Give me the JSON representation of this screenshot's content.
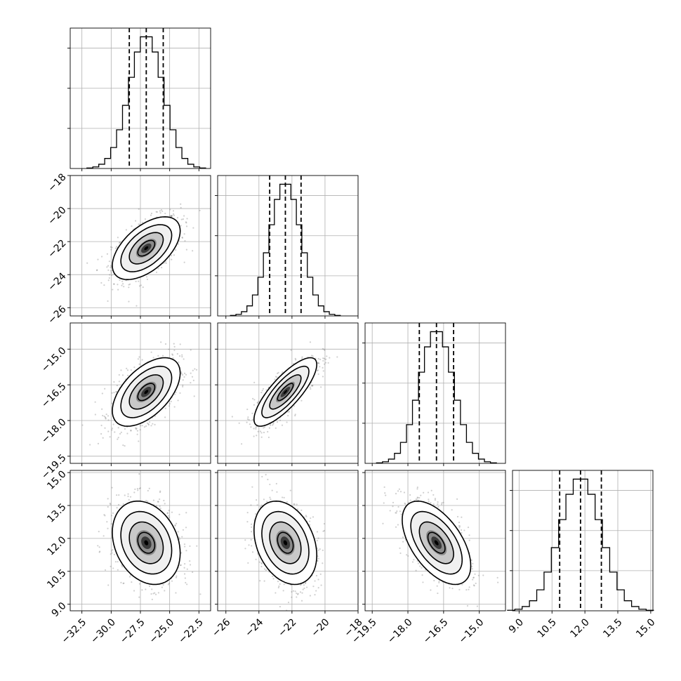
{
  "chart_data": {
    "type": "corner",
    "params": [
      {
        "mean": -27.0,
        "sd": 1.45,
        "quantiles": [
          -28.45,
          -27.0,
          -25.55
        ],
        "range": [
          -33.5,
          -21.5
        ],
        "ticks": [
          -32.5,
          -30.0,
          -27.5,
          -25.0,
          -22.5
        ],
        "tick_labels": [
          "−32.5",
          "−30.0",
          "−27.5",
          "−25.0",
          "−22.5"
        ]
      },
      {
        "mean": -22.4,
        "sd": 0.95,
        "quantiles": [
          -23.35,
          -22.4,
          -21.45
        ],
        "range": [
          -26.5,
          -18.0
        ],
        "ticks": [
          -26,
          -24,
          -22,
          -20,
          -18
        ],
        "tick_labels": [
          "−26",
          "−24",
          "−22",
          "−20",
          "−18"
        ]
      },
      {
        "mean": -16.8,
        "sd": 0.72,
        "quantiles": [
          -17.52,
          -16.8,
          -16.08
        ],
        "range": [
          -19.8,
          -13.9
        ],
        "ticks": [
          -19.5,
          -18.0,
          -16.5,
          -15.0
        ],
        "tick_labels": [
          "−19.5",
          "−18.0",
          "−16.5",
          "−15.0"
        ]
      },
      {
        "mean": 11.8,
        "sd": 0.95,
        "quantiles": [
          10.85,
          11.8,
          12.75
        ],
        "range": [
          8.7,
          15.1
        ],
        "ticks": [
          9.0,
          10.5,
          12.0,
          13.5,
          15.0
        ],
        "tick_labels": [
          "9.0",
          "10.5",
          "12.0",
          "13.5",
          "15.0"
        ]
      }
    ],
    "correlations": {
      "1-0": 0.55,
      "2-0": 0.55,
      "2-1": 0.8,
      "3-0": -0.25,
      "3-1": -0.3,
      "3-2": -0.55
    },
    "histogram_bins": 20,
    "contour_levels": [
      "0.5 sigma",
      "1 sigma",
      "1.5 sigma",
      "2 sigma"
    ],
    "quantiles": [
      0.16,
      0.5,
      0.84
    ],
    "grid": true,
    "legend": "none"
  }
}
